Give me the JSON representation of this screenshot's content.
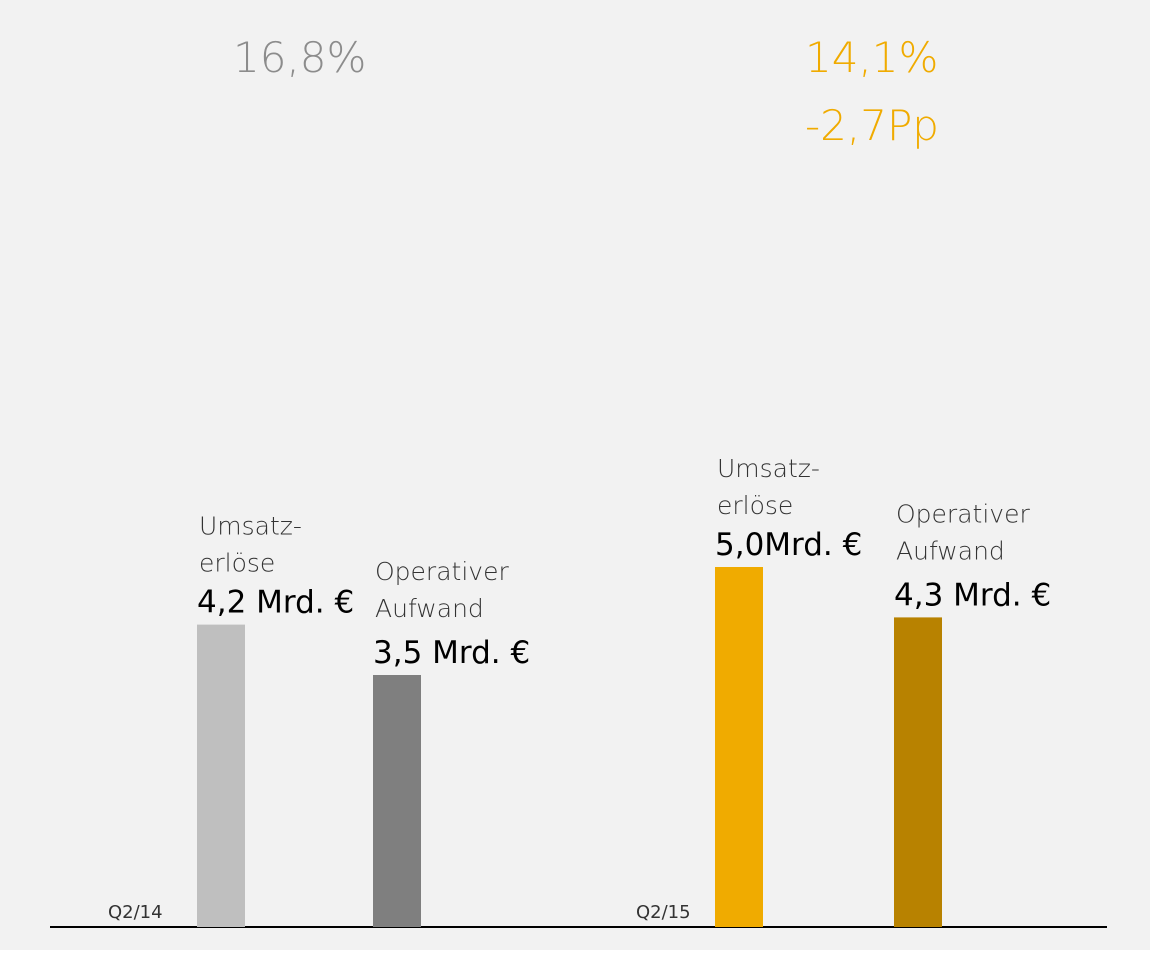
{
  "chart_data": {
    "type": "bar",
    "categories": [
      "Q2/14",
      "Q2/15"
    ],
    "annotations": [
      [
        "16,8%"
      ],
      [
        "14,1%",
        "-2,7Pp"
      ]
    ],
    "annotation_colors": [
      "#8c8c8c",
      "#f0ab00"
    ],
    "series": [
      {
        "name_lines": [
          "Umsatz-",
          "erlöse"
        ],
        "colors": [
          "#bfbfbf",
          "#f0ab00"
        ],
        "values": [
          4.2,
          5.0
        ],
        "value_labels": [
          "4,2 Mrd. €",
          "5,0Mrd. €"
        ]
      },
      {
        "name_lines": [
          "Operativer",
          "Aufwand"
        ],
        "colors": [
          "#7f7f7f",
          "#b88200"
        ],
        "values": [
          3.5,
          4.3
        ],
        "value_labels": [
          "3,5 Mrd. €",
          "4,3 Mrd. €"
        ]
      }
    ],
    "ylim": [
      0,
      12
    ]
  }
}
